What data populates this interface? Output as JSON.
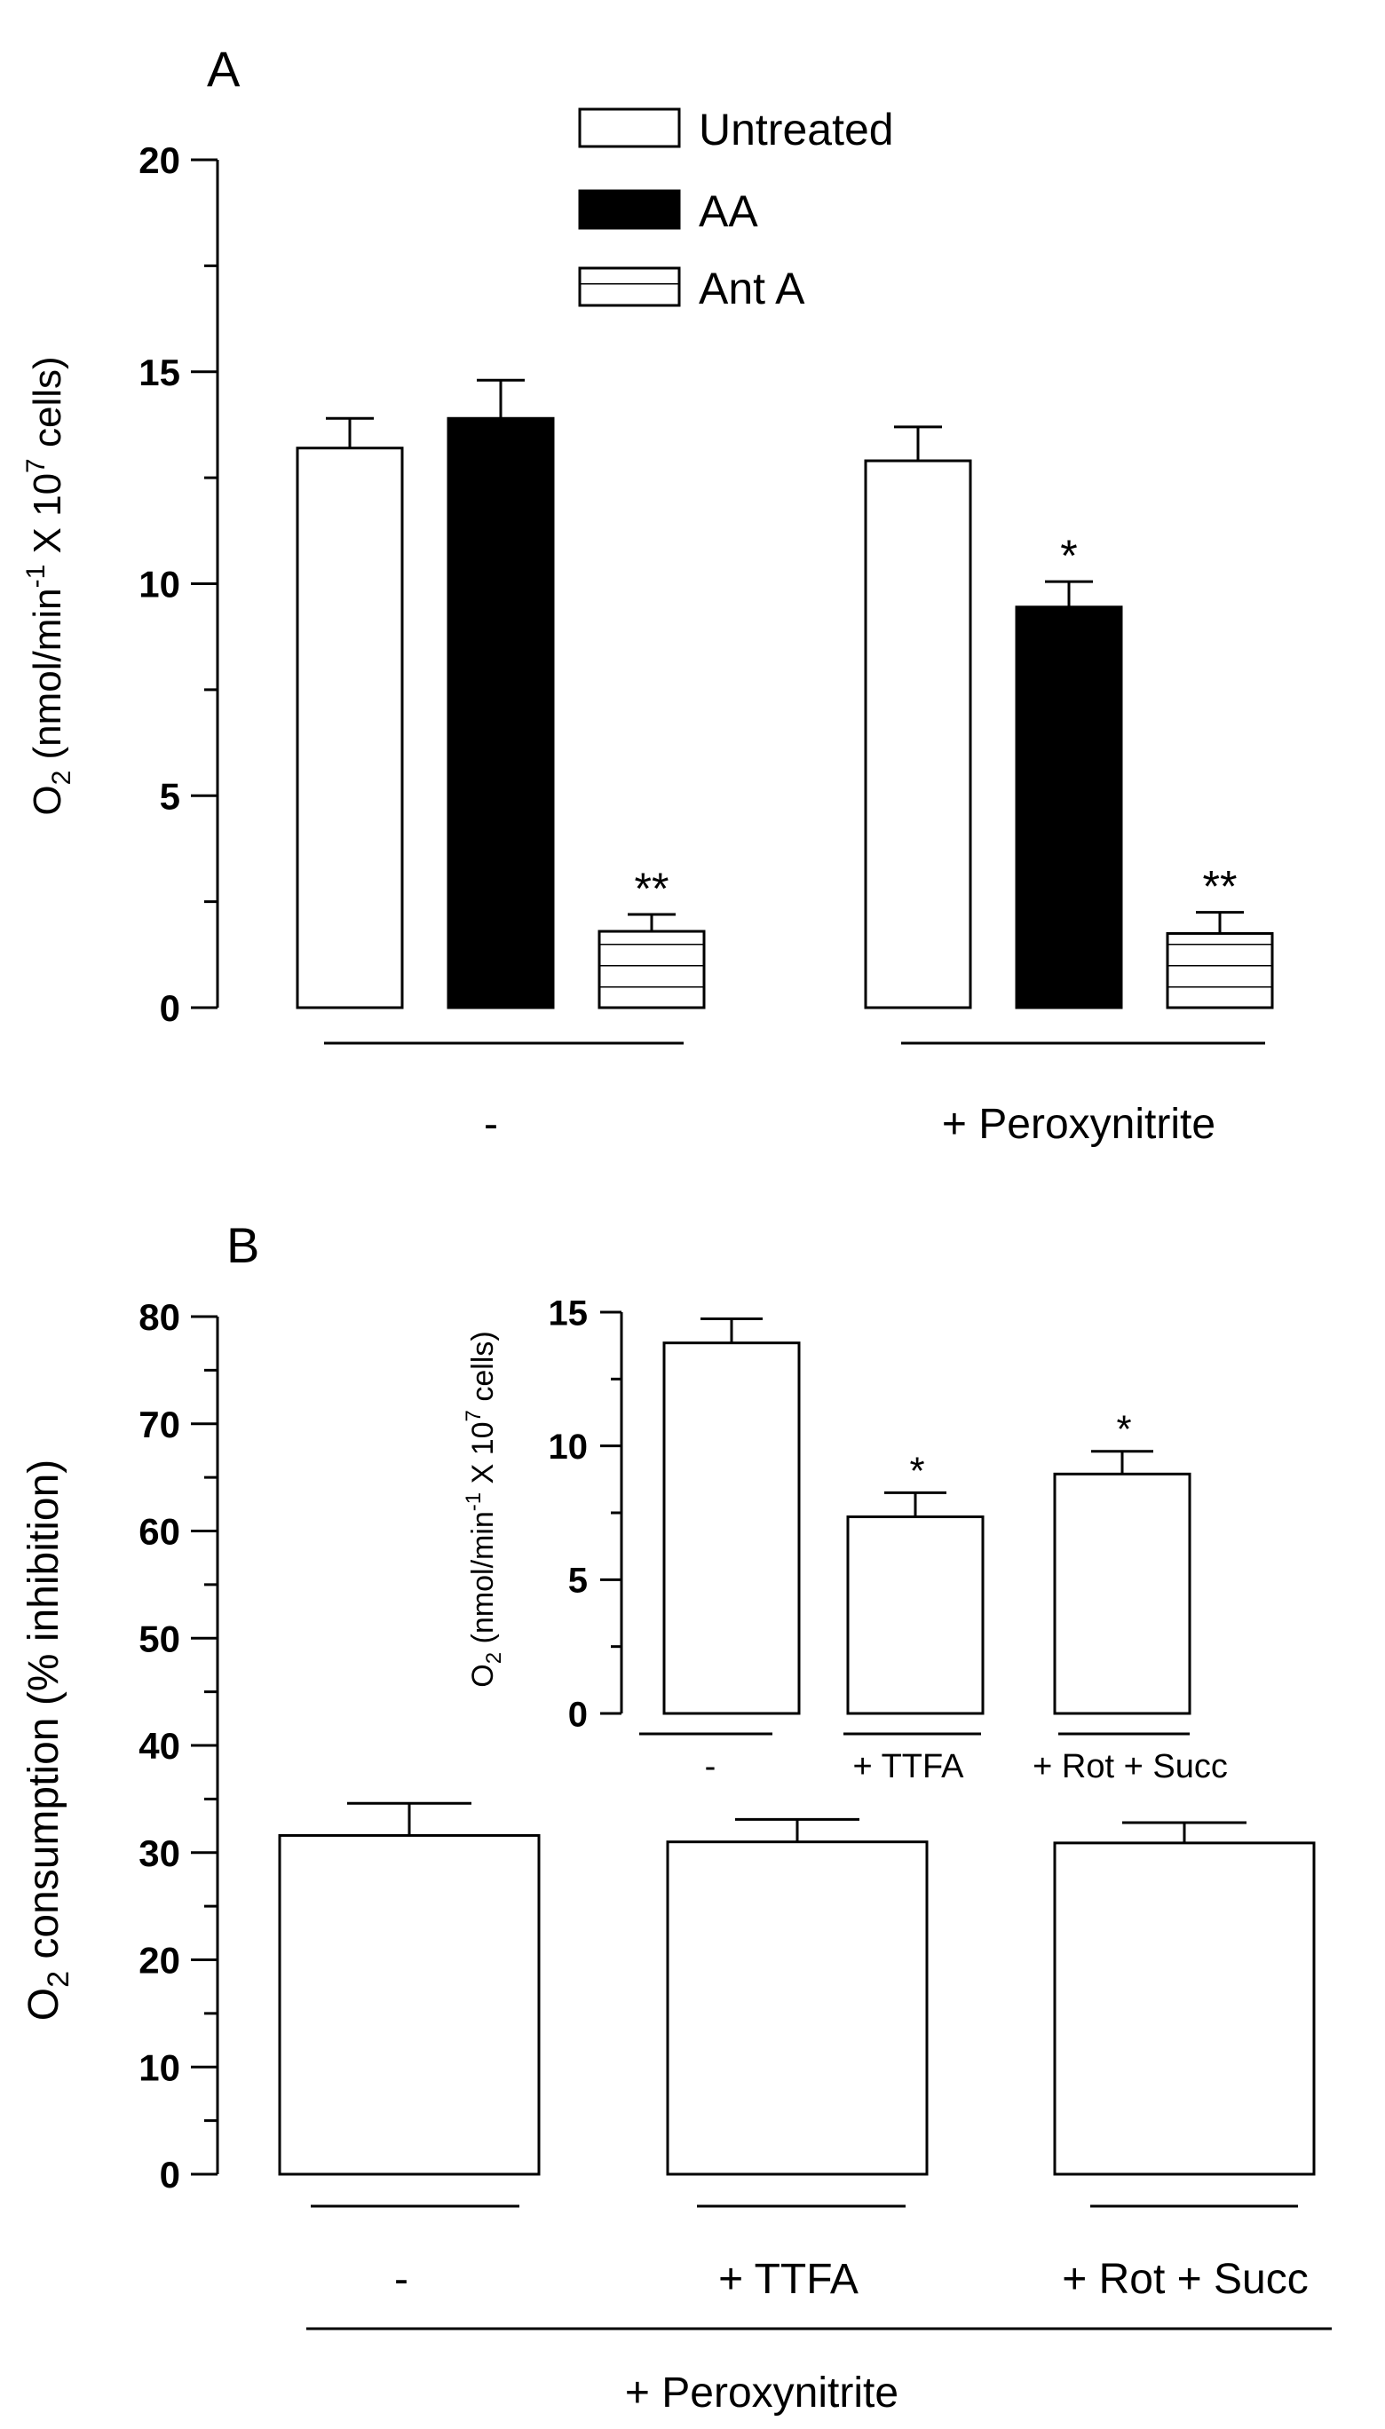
{
  "colors": {
    "ink": "#000000",
    "paper": "#ffffff"
  },
  "chart_data": [
    {
      "panel": "A",
      "type": "bar",
      "title": "A",
      "ylabel": {
        "main": "O",
        "sub": "2",
        "rest1": " (nmol/min",
        "sup1": "-1",
        "rest2": " X 10",
        "sup2": "7",
        "rest3": " cells)"
      },
      "ylim": [
        0,
        20
      ],
      "yticks": [
        0,
        5,
        10,
        15,
        20
      ],
      "groups": [
        "-",
        "+ Peroxynitrite"
      ],
      "series": [
        {
          "name": "Untreated",
          "fill": "white",
          "values": [
            13.2,
            12.9
          ],
          "errors": [
            0.7,
            0.8
          ],
          "annotations": [
            "",
            ""
          ]
        },
        {
          "name": "AA",
          "fill": "black",
          "values": [
            13.9,
            9.45
          ],
          "errors": [
            0.9,
            0.6
          ],
          "annotations": [
            "",
            "*"
          ]
        },
        {
          "name": "Ant A",
          "fill": "hatched",
          "values": [
            1.8,
            1.75
          ],
          "errors": [
            0.4,
            0.5
          ],
          "annotations": [
            "**",
            "**"
          ]
        }
      ],
      "legend_position": "top-center"
    },
    {
      "panel": "B",
      "type": "bar",
      "title": "B",
      "ylabel": {
        "main": "O",
        "sub": "2",
        "rest": " consumption (% inhibition)"
      },
      "ylim": [
        0,
        80
      ],
      "yticks": [
        0,
        10,
        20,
        30,
        40,
        50,
        60,
        70,
        80
      ],
      "categories": [
        "-",
        "+ TTFA",
        "+ Rot + Succ"
      ],
      "group_label": "+ Peroxynitrite",
      "values": [
        31.6,
        31.0,
        30.9
      ],
      "errors": [
        3.0,
        2.1,
        1.9
      ]
    },
    {
      "panel": "B-inset",
      "type": "bar",
      "ylabel": {
        "main": "O",
        "sub": "2",
        "rest1": " (nmol/min",
        "sup1": "-1",
        "rest2": " X 10",
        "sup2": "7",
        "rest3": " cells)"
      },
      "ylim": [
        0,
        15
      ],
      "yticks": [
        0,
        5,
        10,
        15
      ],
      "categories": [
        "-",
        "+ TTFA",
        "+ Rot + Succ"
      ],
      "values": [
        13.85,
        7.35,
        8.95
      ],
      "errors": [
        0.9,
        0.9,
        0.85
      ],
      "annotations": [
        "",
        "*",
        "*"
      ]
    }
  ]
}
